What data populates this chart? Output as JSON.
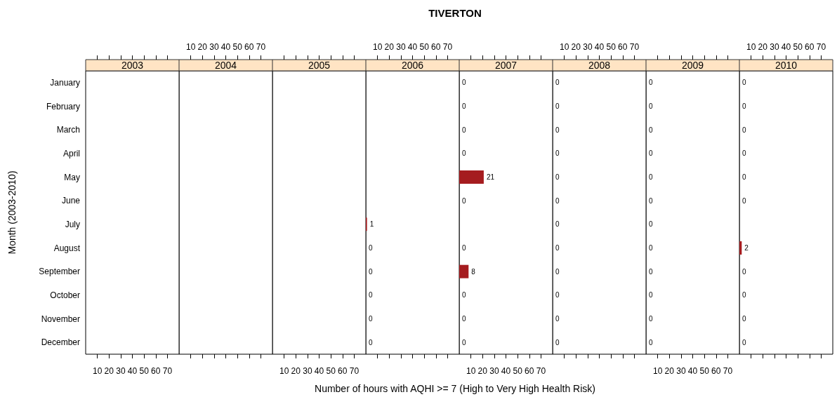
{
  "chart_data": [
    {
      "type": "bar",
      "orientation": "horizontal",
      "subtitle": "2003",
      "ylabel": "Month (2003-2010)",
      "categories": [
        "January",
        "February",
        "March",
        "April",
        "May",
        "June",
        "July",
        "August",
        "September",
        "October",
        "November",
        "December"
      ],
      "values": [
        null,
        null,
        null,
        null,
        null,
        null,
        null,
        null,
        null,
        null,
        null,
        null
      ],
      "color": "#a51c1f",
      "xlim": [
        0,
        80
      ],
      "xticks": [
        10,
        20,
        30,
        40,
        50,
        60,
        70
      ],
      "data_labels": true
    },
    {
      "type": "bar",
      "orientation": "horizontal",
      "subtitle": "2004",
      "categories": [
        null,
        null,
        null,
        null,
        null,
        null,
        null,
        null,
        null,
        null,
        null,
        null
      ],
      "values": [
        null,
        null,
        null,
        null,
        null,
        null,
        null,
        null,
        null,
        null,
        null,
        null
      ],
      "color": "#a51c1f",
      "xlim": [
        0,
        80
      ],
      "xticks": [
        10,
        20,
        30,
        40,
        50,
        60,
        70
      ],
      "data_labels": true,
      "tick_labels": "x"
    },
    {
      "type": "bar",
      "orientation": "horizontal",
      "subtitle": "2005",
      "categories": [
        null,
        null,
        null,
        null,
        null,
        null,
        null,
        null,
        null,
        null,
        null,
        null
      ],
      "values": [
        null,
        null,
        null,
        null,
        null,
        null,
        null,
        null,
        null,
        null,
        null,
        null
      ],
      "color": "#a51c1f",
      "xlim": [
        0,
        80
      ],
      "xticks": [
        10,
        20,
        30,
        40,
        50,
        60,
        70
      ],
      "data_labels": true,
      "tick_labels": "x"
    },
    {
      "type": "bar",
      "orientation": "horizontal",
      "title": "TIVERTON",
      "xlabel": "Number of hours with AQHI >= 7 (High to Very High Health Risk)",
      "subtitle": "2006",
      "categories": [
        null,
        null,
        null,
        null,
        null,
        null,
        null,
        null,
        null,
        null,
        null,
        null
      ],
      "values": [
        null,
        null,
        null,
        null,
        null,
        null,
        1,
        0,
        0,
        0,
        0,
        0
      ],
      "color": "#a51c1f",
      "xlim": [
        0,
        80
      ],
      "xticks": [
        10,
        20,
        30,
        40,
        50,
        60,
        70
      ],
      "data_labels": true,
      "tick_labels": "x"
    },
    {
      "type": "bar",
      "orientation": "horizontal",
      "subtitle": "2007",
      "categories": [
        null,
        null,
        null,
        null,
        null,
        null,
        null,
        null,
        null,
        null,
        null,
        null
      ],
      "values": [
        0,
        0,
        0,
        0,
        21,
        0,
        null,
        0,
        8,
        0,
        0,
        0
      ],
      "color": "#a51c1f",
      "xlim": [
        0,
        80
      ],
      "xticks": [
        10,
        20,
        30,
        40,
        50,
        60,
        70
      ],
      "data_labels": true,
      "tick_labels": "x"
    },
    {
      "type": "bar",
      "orientation": "horizontal",
      "subtitle": "2008",
      "categories": [
        null,
        null,
        null,
        null,
        null,
        null,
        null,
        null,
        null,
        null,
        null,
        null
      ],
      "values": [
        0,
        0,
        0,
        0,
        0,
        0,
        0,
        0,
        0,
        0,
        0,
        0
      ],
      "color": "#a51c1f",
      "xlim": [
        0,
        80
      ],
      "xticks": [
        10,
        20,
        30,
        40,
        50,
        60,
        70
      ],
      "data_labels": true,
      "tick_labels": "x"
    },
    {
      "type": "bar",
      "orientation": "horizontal",
      "subtitle": "2009",
      "categories": [
        null,
        null,
        null,
        null,
        null,
        null,
        null,
        null,
        null,
        null,
        null,
        null
      ],
      "values": [
        0,
        0,
        0,
        0,
        0,
        0,
        0,
        0,
        0,
        0,
        0,
        0
      ],
      "color": "#a51c1f",
      "xlim": [
        0,
        80
      ],
      "xticks": [
        10,
        20,
        30,
        40,
        50,
        60,
        70
      ],
      "data_labels": true,
      "tick_labels": "x"
    },
    {
      "type": "bar",
      "orientation": "horizontal",
      "subtitle": "2010",
      "categories": [
        null,
        null,
        null,
        null,
        null,
        null,
        null,
        null,
        null,
        null,
        null,
        null
      ],
      "values": [
        0,
        0,
        0,
        0,
        0,
        0,
        null,
        2,
        0,
        0,
        0,
        0
      ],
      "color": "#a51c1f",
      "xlim": [
        0,
        80
      ],
      "xticks": [
        10,
        20,
        30,
        40,
        50,
        60,
        70
      ],
      "data_labels": true,
      "tick_labels": "x"
    }
  ]
}
